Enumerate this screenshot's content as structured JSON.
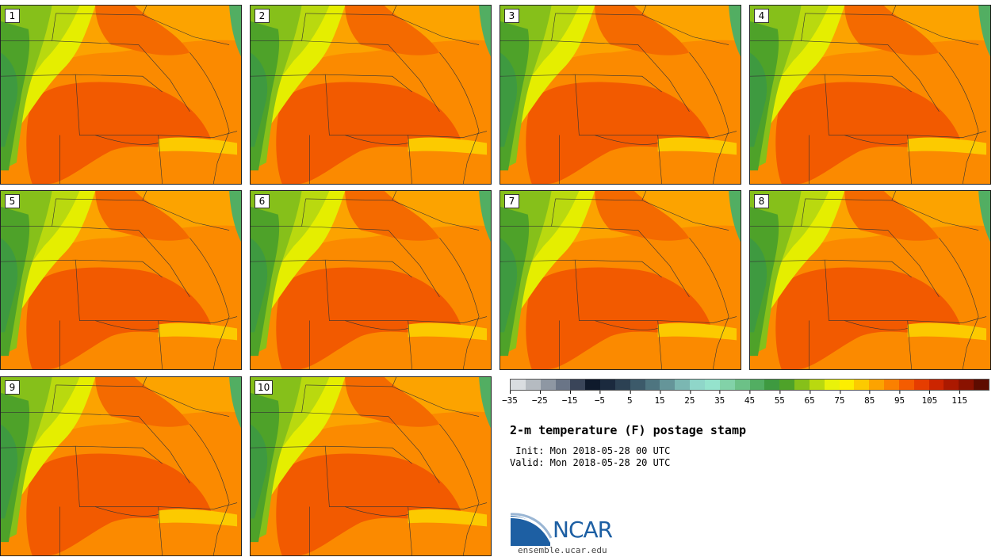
{
  "panels": [
    {
      "label": "1"
    },
    {
      "label": "2"
    },
    {
      "label": "3"
    },
    {
      "label": "4"
    },
    {
      "label": "5"
    },
    {
      "label": "6"
    },
    {
      "label": "7"
    },
    {
      "label": "8"
    },
    {
      "label": "9"
    },
    {
      "label": "10"
    }
  ],
  "colorbar": {
    "colors": [
      "#d9dde0",
      "#b5bbc1",
      "#8e97a3",
      "#6a7587",
      "#3a4559",
      "#0f1a2c",
      "#1b2a3e",
      "#2c4153",
      "#3c5a6a",
      "#4e7580",
      "#659599",
      "#7bb7b2",
      "#8fd6c9",
      "#95e3cd",
      "#82d2a8",
      "#6cc187",
      "#52ae62",
      "#3e9a40",
      "#4ea229",
      "#86c01a",
      "#b9d90f",
      "#e9f20a",
      "#fdee00",
      "#fcca00",
      "#fca300",
      "#fb8000",
      "#f45c00",
      "#e63d00",
      "#cc2500",
      "#ab1900",
      "#8a1200",
      "#5e0c00"
    ],
    "ticks": [
      "-35",
      "-25",
      "-15",
      "-5",
      "5",
      "15",
      "25",
      "35",
      "45",
      "55",
      "65",
      "75",
      "85",
      "95",
      "105",
      "115"
    ],
    "unit": "F"
  },
  "title": "2-m temperature (F) postage stamp",
  "init": " Init: Mon 2018-05-28 00 UTC",
  "valid": "Valid: Mon 2018-05-28 20 UTC",
  "logo": {
    "text": "NCAR",
    "url": "ensemble.ucar.edu"
  },
  "colors": {
    "hot": "#f25a00",
    "warm": "#fb8a00",
    "mild": "#fca300",
    "cool": "#e5ee00",
    "cold": "#86c01a",
    "mountain": "#3e9a40"
  }
}
